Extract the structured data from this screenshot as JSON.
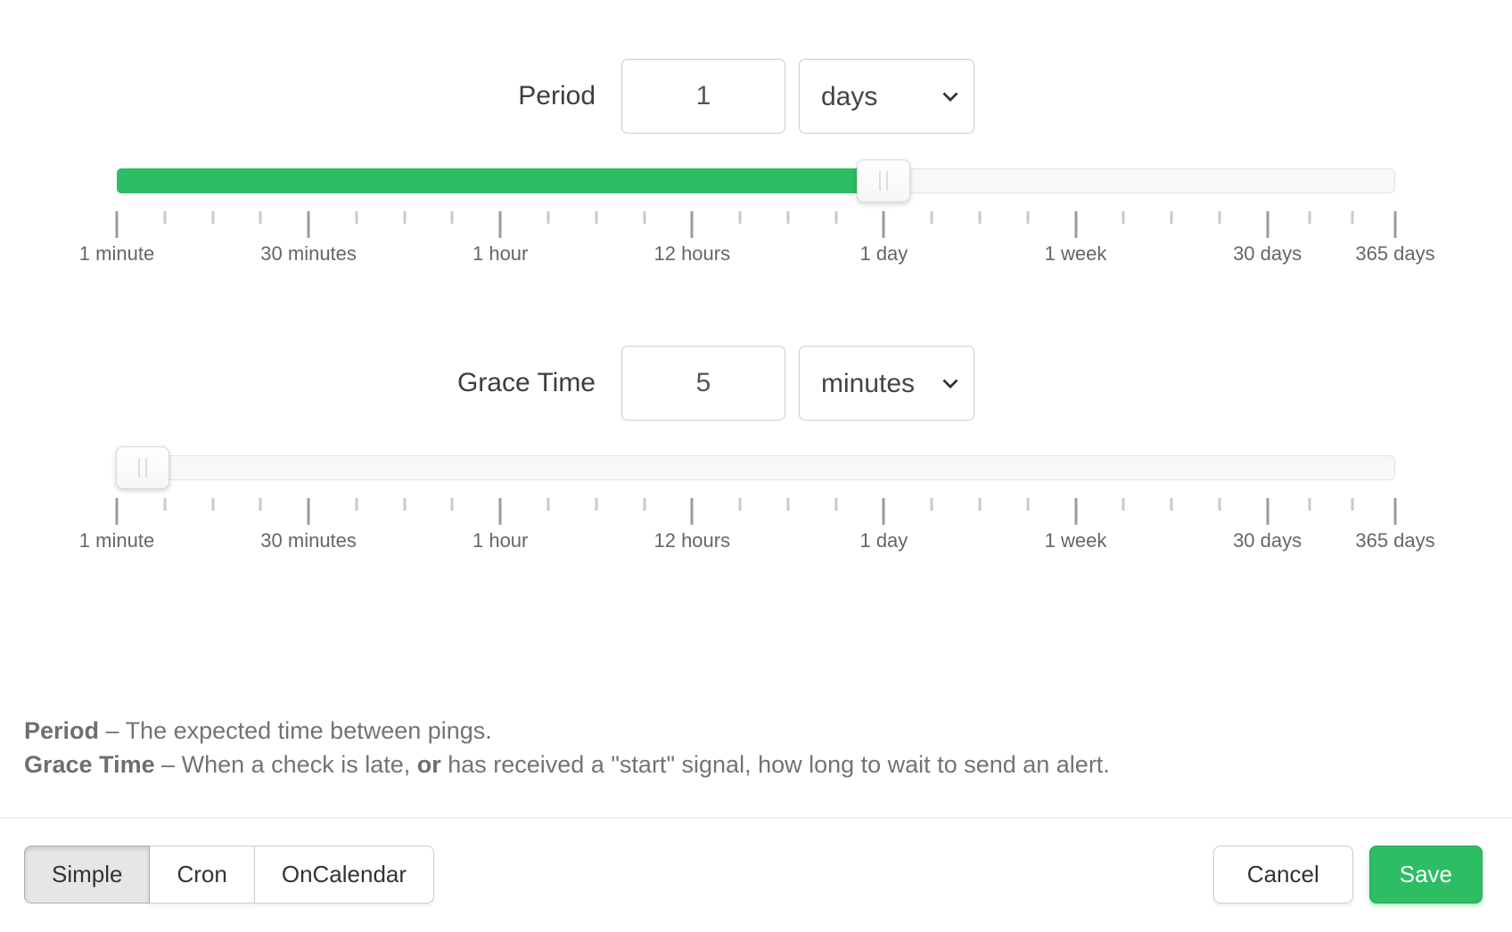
{
  "colors": {
    "accent_green": "#2dbd63",
    "accent_green_border": "#28a957"
  },
  "period": {
    "label": "Period",
    "value": "1",
    "unit": "days",
    "slider_percent": 60
  },
  "grace": {
    "label": "Grace Time",
    "value": "5",
    "unit": "minutes",
    "slider_percent": 2
  },
  "scale": {
    "labels": [
      "1 minute",
      "30 minutes",
      "1 hour",
      "12 hours",
      "1 day",
      "1 week",
      "30 days",
      "365 days"
    ],
    "positions": [
      0,
      15,
      30,
      45,
      60,
      75,
      90,
      100
    ],
    "minors_per_gap": [
      3,
      3,
      3,
      3,
      3,
      3,
      2
    ]
  },
  "help": {
    "line1_term": "Period",
    "line1_rest": " – The expected time between pings.",
    "line2_term": "Grace Time",
    "line2_rest_a": " – When a check is late, ",
    "line2_bold": "or",
    "line2_rest_b": " has received a \"start\" signal, how long to wait to send an alert."
  },
  "footer": {
    "mode_buttons": [
      {
        "label": "Simple",
        "active": true
      },
      {
        "label": "Cron",
        "active": false
      },
      {
        "label": "OnCalendar",
        "active": false
      }
    ],
    "cancel_label": "Cancel",
    "save_label": "Save"
  }
}
